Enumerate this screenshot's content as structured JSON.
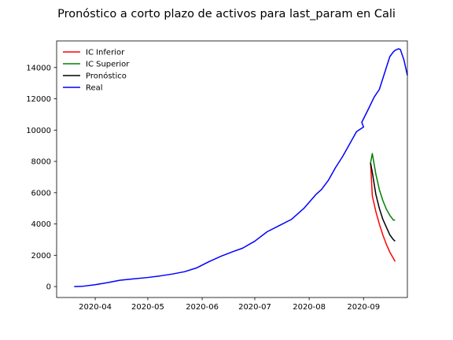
{
  "chart_data": {
    "type": "line",
    "title": "Pronóstico a corto plazo de activos para last_param en Cali",
    "xlabel": "",
    "ylabel": "",
    "x_axis": {
      "scale": "date",
      "range": [
        "2020-03-10",
        "2020-09-26"
      ],
      "tick_values": [
        "2020-04-01",
        "2020-05-01",
        "2020-06-01",
        "2020-07-01",
        "2020-08-01",
        "2020-09-01"
      ],
      "tick_labels": [
        "2020-04",
        "2020-05",
        "2020-06",
        "2020-07",
        "2020-08",
        "2020-09"
      ]
    },
    "y_axis": {
      "range": [
        -700,
        15700
      ],
      "tick_values": [
        0,
        2000,
        4000,
        6000,
        8000,
        10000,
        12000,
        14000
      ],
      "tick_labels": [
        "0",
        "2000",
        "4000",
        "6000",
        "8000",
        "10000",
        "12000",
        "14000"
      ]
    },
    "grid": false,
    "legend_position": "upper-left",
    "series": [
      {
        "name": "IC Inferior",
        "color": "#ff0000",
        "points": [
          [
            "2020-09-05",
            7950
          ],
          [
            "2020-09-06",
            5800
          ],
          [
            "2020-09-08",
            4800
          ],
          [
            "2020-09-10",
            4000
          ],
          [
            "2020-09-12",
            3300
          ],
          [
            "2020-09-14",
            2700
          ],
          [
            "2020-09-16",
            2200
          ],
          [
            "2020-09-18",
            1800
          ],
          [
            "2020-09-19",
            1600
          ]
        ]
      },
      {
        "name": "IC Superior",
        "color": "#008000",
        "points": [
          [
            "2020-09-05",
            7900
          ],
          [
            "2020-09-06",
            8500
          ],
          [
            "2020-09-08",
            7200
          ],
          [
            "2020-09-10",
            6200
          ],
          [
            "2020-09-12",
            5500
          ],
          [
            "2020-09-14",
            4950
          ],
          [
            "2020-09-16",
            4550
          ],
          [
            "2020-09-18",
            4250
          ],
          [
            "2020-09-19",
            4250
          ]
        ]
      },
      {
        "name": "Pronóstico",
        "color": "#000000",
        "points": [
          [
            "2020-09-05",
            7900
          ],
          [
            "2020-09-06",
            7300
          ],
          [
            "2020-09-08",
            5900
          ],
          [
            "2020-09-10",
            5000
          ],
          [
            "2020-09-12",
            4300
          ],
          [
            "2020-09-14",
            3800
          ],
          [
            "2020-09-16",
            3300
          ],
          [
            "2020-09-18",
            3000
          ],
          [
            "2020-09-19",
            2900
          ]
        ]
      },
      {
        "name": "Real",
        "color": "#0000ff",
        "points": [
          [
            "2020-03-20",
            0
          ],
          [
            "2020-03-25",
            20
          ],
          [
            "2020-04-01",
            120
          ],
          [
            "2020-04-08",
            250
          ],
          [
            "2020-04-15",
            400
          ],
          [
            "2020-04-22",
            480
          ],
          [
            "2020-05-01",
            580
          ],
          [
            "2020-05-08",
            680
          ],
          [
            "2020-05-15",
            800
          ],
          [
            "2020-05-22",
            950
          ],
          [
            "2020-05-29",
            1200
          ],
          [
            "2020-06-05",
            1600
          ],
          [
            "2020-06-12",
            1950
          ],
          [
            "2020-06-19",
            2250
          ],
          [
            "2020-06-24",
            2450
          ],
          [
            "2020-07-01",
            2900
          ],
          [
            "2020-07-08",
            3500
          ],
          [
            "2020-07-15",
            3900
          ],
          [
            "2020-07-22",
            4300
          ],
          [
            "2020-07-29",
            5000
          ],
          [
            "2020-08-05",
            5900
          ],
          [
            "2020-08-08",
            6200
          ],
          [
            "2020-08-12",
            6800
          ],
          [
            "2020-08-16",
            7600
          ],
          [
            "2020-08-20",
            8300
          ],
          [
            "2020-08-24",
            9100
          ],
          [
            "2020-08-28",
            9900
          ],
          [
            "2020-09-01",
            10200
          ],
          [
            "2020-08-31",
            10500
          ],
          [
            "2020-09-04",
            11400
          ],
          [
            "2020-09-07",
            12100
          ],
          [
            "2020-09-10",
            12600
          ],
          [
            "2020-09-12",
            13300
          ],
          [
            "2020-09-14",
            14000
          ],
          [
            "2020-09-16",
            14700
          ],
          [
            "2020-09-18",
            15000
          ],
          [
            "2020-09-19",
            15100
          ],
          [
            "2020-09-21",
            15200
          ],
          [
            "2020-09-22",
            15150
          ],
          [
            "2020-09-24",
            14500
          ],
          [
            "2020-09-26",
            13500
          ]
        ]
      }
    ]
  }
}
